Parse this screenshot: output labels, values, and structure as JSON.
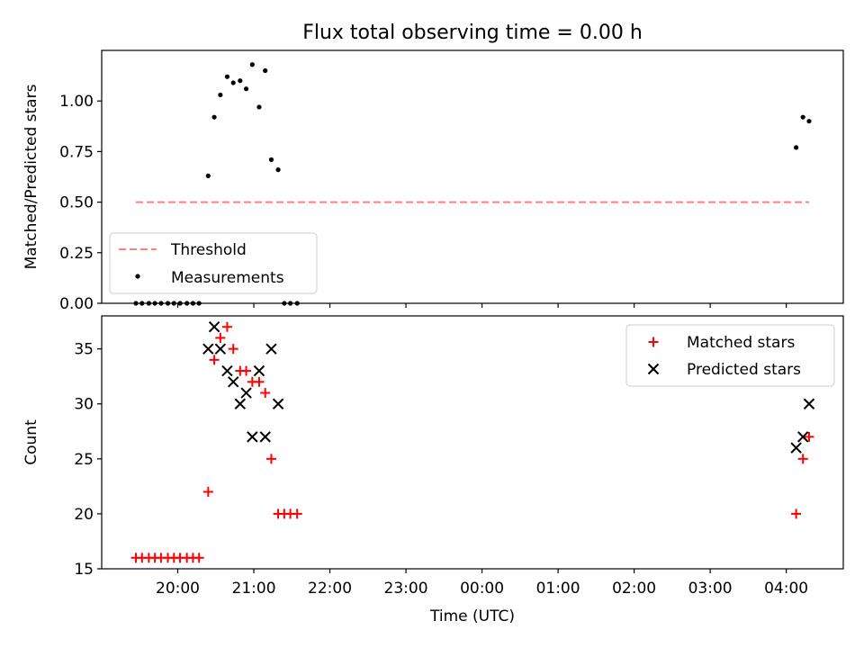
{
  "figure": {
    "title": "Flux total observing time = 0.00 h"
  },
  "chart_data": [
    {
      "type": "scatter",
      "panel": "top",
      "ylabel": "Matched/Predicted stars",
      "xlabel": "",
      "xlim": [
        19.0,
        28.75
      ],
      "ylim": [
        0.0,
        1.25
      ],
      "yticks": [
        0.0,
        0.25,
        0.5,
        0.75,
        1.0
      ],
      "ytick_labels": [
        "0.00",
        "0.25",
        "0.50",
        "0.75",
        "1.00"
      ],
      "xticks": [
        20,
        21,
        22,
        23,
        24,
        25,
        26,
        27,
        28
      ],
      "xtick_labels_visible": false,
      "grid": false,
      "legend_position": "lower-left",
      "threshold": {
        "name": "Threshold",
        "value": 0.5,
        "x_range": [
          19.45,
          28.3
        ],
        "color": "#ff7f7f",
        "style": "dashed"
      },
      "series": [
        {
          "name": "Measurements",
          "color": "#000000",
          "marker": "dot",
          "points": [
            {
              "x": 19.45,
              "y": 0.0
            },
            {
              "x": 19.53,
              "y": 0.0
            },
            {
              "x": 19.62,
              "y": 0.0
            },
            {
              "x": 19.7,
              "y": 0.0
            },
            {
              "x": 19.78,
              "y": 0.0
            },
            {
              "x": 19.87,
              "y": 0.0
            },
            {
              "x": 19.95,
              "y": 0.0
            },
            {
              "x": 20.03,
              "y": 0.0
            },
            {
              "x": 20.12,
              "y": 0.0
            },
            {
              "x": 20.2,
              "y": 0.0
            },
            {
              "x": 20.28,
              "y": 0.0
            },
            {
              "x": 20.4,
              "y": 0.63
            },
            {
              "x": 20.48,
              "y": 0.92
            },
            {
              "x": 20.56,
              "y": 1.03
            },
            {
              "x": 20.65,
              "y": 1.12
            },
            {
              "x": 20.73,
              "y": 1.09
            },
            {
              "x": 20.82,
              "y": 1.1
            },
            {
              "x": 20.9,
              "y": 1.06
            },
            {
              "x": 20.98,
              "y": 1.18
            },
            {
              "x": 21.07,
              "y": 0.97
            },
            {
              "x": 21.15,
              "y": 1.15
            },
            {
              "x": 21.23,
              "y": 0.71
            },
            {
              "x": 21.32,
              "y": 0.66
            },
            {
              "x": 21.4,
              "y": 0.0
            },
            {
              "x": 21.48,
              "y": 0.0
            },
            {
              "x": 21.57,
              "y": 0.0
            },
            {
              "x": 28.13,
              "y": 0.77
            },
            {
              "x": 28.22,
              "y": 0.92
            },
            {
              "x": 28.3,
              "y": 0.9
            }
          ]
        }
      ]
    },
    {
      "type": "scatter",
      "panel": "bottom",
      "ylabel": "Count",
      "xlabel": "Time (UTC)",
      "xlim": [
        19.0,
        28.75
      ],
      "ylim": [
        15.0,
        38.0
      ],
      "yticks": [
        15,
        20,
        25,
        30,
        35
      ],
      "ytick_labels": [
        "15",
        "20",
        "25",
        "30",
        "35"
      ],
      "xticks": [
        20,
        21,
        22,
        23,
        24,
        25,
        26,
        27,
        28
      ],
      "xtick_labels": [
        "20:00",
        "21:00",
        "22:00",
        "23:00",
        "00:00",
        "01:00",
        "02:00",
        "03:00",
        "04:00"
      ],
      "grid": false,
      "legend_position": "upper-right",
      "series": [
        {
          "name": "Matched stars",
          "color": "#ff0000",
          "marker": "plus",
          "points": [
            {
              "x": 19.45,
              "y": 16
            },
            {
              "x": 19.53,
              "y": 16
            },
            {
              "x": 19.62,
              "y": 16
            },
            {
              "x": 19.7,
              "y": 16
            },
            {
              "x": 19.78,
              "y": 16
            },
            {
              "x": 19.87,
              "y": 16
            },
            {
              "x": 19.95,
              "y": 16
            },
            {
              "x": 20.03,
              "y": 16
            },
            {
              "x": 20.12,
              "y": 16
            },
            {
              "x": 20.2,
              "y": 16
            },
            {
              "x": 20.28,
              "y": 16
            },
            {
              "x": 20.4,
              "y": 22
            },
            {
              "x": 20.48,
              "y": 34
            },
            {
              "x": 20.56,
              "y": 36
            },
            {
              "x": 20.65,
              "y": 37
            },
            {
              "x": 20.73,
              "y": 35
            },
            {
              "x": 20.82,
              "y": 33
            },
            {
              "x": 20.9,
              "y": 33
            },
            {
              "x": 20.98,
              "y": 32
            },
            {
              "x": 21.07,
              "y": 32
            },
            {
              "x": 21.15,
              "y": 31
            },
            {
              "x": 21.23,
              "y": 25
            },
            {
              "x": 21.32,
              "y": 20
            },
            {
              "x": 21.4,
              "y": 20
            },
            {
              "x": 21.48,
              "y": 20
            },
            {
              "x": 21.57,
              "y": 20
            },
            {
              "x": 28.13,
              "y": 20
            },
            {
              "x": 28.22,
              "y": 25
            },
            {
              "x": 28.3,
              "y": 27
            }
          ]
        },
        {
          "name": "Predicted stars",
          "color": "#000000",
          "marker": "x",
          "points": [
            {
              "x": 20.4,
              "y": 35
            },
            {
              "x": 20.48,
              "y": 37
            },
            {
              "x": 20.56,
              "y": 35
            },
            {
              "x": 20.65,
              "y": 33
            },
            {
              "x": 20.73,
              "y": 32
            },
            {
              "x": 20.82,
              "y": 30
            },
            {
              "x": 20.9,
              "y": 31
            },
            {
              "x": 20.98,
              "y": 27
            },
            {
              "x": 21.07,
              "y": 33
            },
            {
              "x": 21.15,
              "y": 27
            },
            {
              "x": 21.23,
              "y": 35
            },
            {
              "x": 21.32,
              "y": 30
            },
            {
              "x": 28.13,
              "y": 26
            },
            {
              "x": 28.22,
              "y": 27
            },
            {
              "x": 28.3,
              "y": 30
            }
          ]
        }
      ]
    }
  ]
}
